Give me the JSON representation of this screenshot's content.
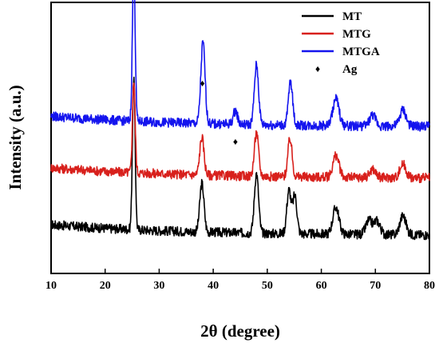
{
  "chart_data": {
    "type": "line",
    "title": "",
    "xlabel": "2θ (degree)",
    "ylabel": "Intensity (a.u.)",
    "xlim": [
      10,
      80
    ],
    "x_ticks": [
      10,
      20,
      30,
      40,
      50,
      60,
      70,
      80
    ],
    "y_ticks_shown": false,
    "grid": false,
    "legend_position": "top-right",
    "series": [
      {
        "name": "MT",
        "color": "#000000",
        "peaks": [
          {
            "x": 25.3,
            "height": 0.56
          },
          {
            "x": 37.9,
            "height": 0.18
          },
          {
            "x": 48.0,
            "height": 0.22
          },
          {
            "x": 54.0,
            "height": 0.16
          },
          {
            "x": 55.1,
            "height": 0.14
          },
          {
            "x": 62.7,
            "height": 0.1
          },
          {
            "x": 68.8,
            "height": 0.05
          },
          {
            "x": 70.3,
            "height": 0.05
          },
          {
            "x": 75.1,
            "height": 0.07
          }
        ]
      },
      {
        "name": "MTG",
        "color": "#d8201c",
        "peaks": [
          {
            "x": 25.3,
            "height": 0.34
          },
          {
            "x": 37.9,
            "height": 0.14
          },
          {
            "x": 48.0,
            "height": 0.16
          },
          {
            "x": 54.2,
            "height": 0.14
          },
          {
            "x": 62.7,
            "height": 0.08
          },
          {
            "x": 69.5,
            "height": 0.03
          },
          {
            "x": 75.1,
            "height": 0.05
          }
        ]
      },
      {
        "name": "MTGA",
        "color": "#1414ee",
        "peaks": [
          {
            "x": 25.3,
            "height": 0.58
          },
          {
            "x": 38.1,
            "height": 0.3
          },
          {
            "x": 44.1,
            "height": 0.05
          },
          {
            "x": 48.0,
            "height": 0.22
          },
          {
            "x": 54.3,
            "height": 0.16
          },
          {
            "x": 62.7,
            "height": 0.1
          },
          {
            "x": 69.5,
            "height": 0.04
          },
          {
            "x": 75.1,
            "height": 0.06
          }
        ]
      }
    ],
    "markers": [
      {
        "label": "Ag",
        "symbol": "♦",
        "x": 38.0
      },
      {
        "label": "Ag",
        "symbol": "♦",
        "x": 44.1
      }
    ],
    "legend_marker_label": "Ag",
    "legend_marker_symbol": "♦"
  }
}
